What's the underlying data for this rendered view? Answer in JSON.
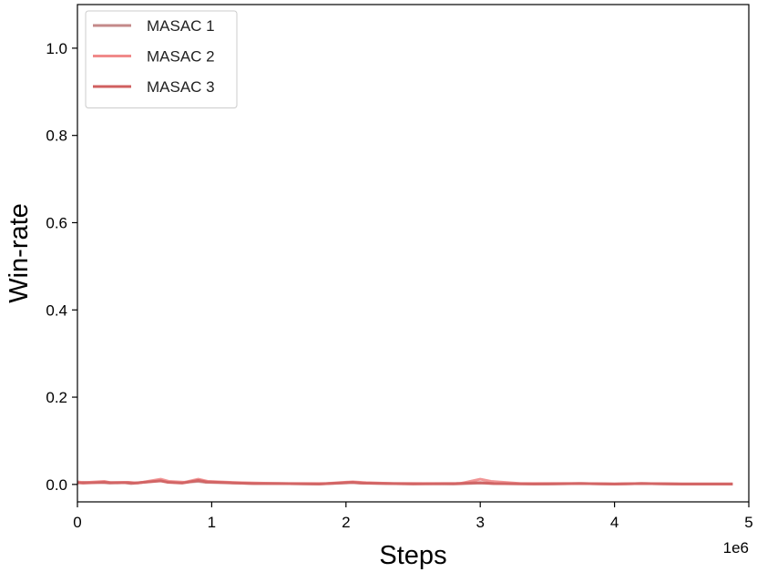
{
  "chart_data": {
    "type": "line",
    "xlabel": "Steps",
    "ylabel": "Win-rate",
    "x_multiplier_label": "1e6",
    "xlim": [
      0,
      5
    ],
    "ylim": [
      -0.04,
      1.1
    ],
    "xticks": [
      0,
      1,
      2,
      3,
      4,
      5
    ],
    "xtick_labels": [
      "0",
      "1",
      "2",
      "3",
      "4",
      "5"
    ],
    "yticks": [
      0.0,
      0.2,
      0.4,
      0.6,
      0.8,
      1.0
    ],
    "ytick_labels": [
      "0.0",
      "0.2",
      "0.4",
      "0.6",
      "0.8",
      "1.0"
    ],
    "grid": false,
    "legend_position": "top-left",
    "series": [
      {
        "name": "MASAC 1",
        "color": "#c48a8a",
        "x": [
          0,
          0.04,
          0.2,
          0.24,
          0.35,
          0.4,
          0.62,
          0.66,
          0.75,
          0.9,
          0.95,
          1.2,
          1.3,
          1.5,
          1.8,
          2.05,
          2.1,
          2.3,
          2.5,
          2.8,
          3.0,
          3.1,
          3.5,
          3.75,
          4.0,
          4.2,
          4.5,
          4.88
        ],
        "y": [
          0.003,
          0.005,
          0.004,
          0.003,
          0.004,
          0.002,
          0.009,
          0.006,
          0.004,
          0.007,
          0.005,
          0.003,
          0.002,
          0.002,
          0.001,
          0.004,
          0.003,
          0.002,
          0.002,
          0.001,
          0.003,
          0.002,
          0.001,
          0.002,
          0.001,
          0.002,
          0.001,
          0.001
        ]
      },
      {
        "name": "MASAC 2",
        "color": "#f08a8a",
        "x": [
          0,
          0.05,
          0.2,
          0.25,
          0.38,
          0.45,
          0.62,
          0.68,
          0.8,
          0.9,
          0.97,
          1.2,
          1.35,
          1.5,
          1.85,
          2.05,
          2.15,
          2.35,
          2.5,
          2.85,
          3.0,
          3.08,
          3.3,
          3.75,
          4.0,
          4.2,
          4.5,
          4.88
        ],
        "y": [
          0.006,
          0.004,
          0.007,
          0.004,
          0.005,
          0.003,
          0.012,
          0.007,
          0.005,
          0.012,
          0.007,
          0.004,
          0.003,
          0.002,
          0.002,
          0.006,
          0.004,
          0.002,
          0.002,
          0.002,
          0.012,
          0.007,
          0.002,
          0.002,
          0.001,
          0.002,
          0.001,
          0.001
        ]
      },
      {
        "name": "MASAC 3",
        "color": "#d06060",
        "x": [
          0,
          0.04,
          0.2,
          0.24,
          0.36,
          0.42,
          0.62,
          0.67,
          0.78,
          0.9,
          0.96,
          1.2,
          1.32,
          1.5,
          1.8,
          2.05,
          2.12,
          2.32,
          2.5,
          2.82,
          3.0,
          3.1,
          3.4,
          3.75,
          4.0,
          4.2,
          4.5,
          4.88
        ],
        "y": [
          0.004,
          0.003,
          0.005,
          0.004,
          0.004,
          0.003,
          0.008,
          0.005,
          0.003,
          0.009,
          0.006,
          0.003,
          0.002,
          0.002,
          0.001,
          0.005,
          0.003,
          0.002,
          0.001,
          0.002,
          0.004,
          0.002,
          0.001,
          0.002,
          0.001,
          0.002,
          0.001,
          0.001
        ]
      }
    ]
  }
}
